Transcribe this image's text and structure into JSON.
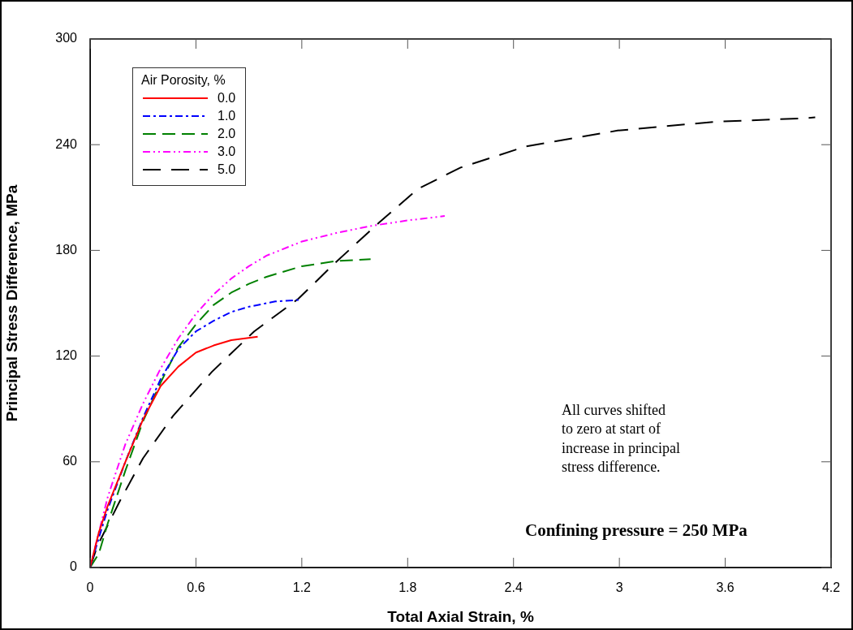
{
  "chart_data": {
    "type": "line",
    "xlabel": "Total Axial Strain, %",
    "ylabel": "Principal Stress Difference, MPa",
    "legend_title": "Air Porosity, %",
    "legend": "top left",
    "grid": false,
    "marker": "none",
    "xlim": [
      0,
      4.2
    ],
    "xticks": [
      0,
      0.6,
      1.2,
      1.8,
      2.4,
      3,
      3.6,
      4.2
    ],
    "ylim": [
      0,
      300
    ],
    "yticks": [
      0,
      60,
      120,
      180,
      240,
      300
    ],
    "annotations": [
      "All curves shifted\nto zero at start of\nincrease in principal\nstress difference.",
      "Confining pressure = 250 MPa"
    ],
    "series": [
      {
        "name": "0.0",
        "color": "#ff0000",
        "line_style": "solid",
        "x": [
          0,
          0.05,
          0.1,
          0.2,
          0.3,
          0.4,
          0.5,
          0.6,
          0.7,
          0.8,
          0.95
        ],
        "values": [
          0,
          20,
          35,
          60,
          84,
          103,
          114,
          122,
          126,
          129,
          131
        ]
      },
      {
        "name": "1.0",
        "color": "#0000ff",
        "line_style": "dashed",
        "x": [
          0,
          0.05,
          0.1,
          0.2,
          0.3,
          0.4,
          0.5,
          0.6,
          0.7,
          0.8,
          0.9,
          1.05,
          1.2
        ],
        "values": [
          0,
          17,
          33,
          60,
          85,
          107,
          124,
          134,
          140,
          145,
          148,
          151,
          152
        ]
      },
      {
        "name": "2.0",
        "color": "#008000",
        "line_style": "dashed",
        "x": [
          0,
          0.05,
          0.1,
          0.2,
          0.3,
          0.4,
          0.5,
          0.6,
          0.7,
          0.8,
          0.9,
          1.0,
          1.2,
          1.4,
          1.59
        ],
        "values": [
          0,
          8,
          25,
          55,
          83,
          105,
          125,
          138,
          149,
          156,
          161,
          165,
          171,
          174,
          175
        ]
      },
      {
        "name": "3.0",
        "color": "#ff00ff",
        "line_style": "dashed",
        "x": [
          0,
          0.05,
          0.1,
          0.2,
          0.3,
          0.4,
          0.5,
          0.6,
          0.7,
          0.8,
          0.9,
          1.0,
          1.2,
          1.4,
          1.6,
          1.8,
          2.01
        ],
        "values": [
          0,
          20,
          40,
          70,
          93,
          113,
          130,
          144,
          155,
          164,
          171,
          177,
          185,
          190,
          194,
          197,
          199.5
        ]
      },
      {
        "name": "5.0",
        "color": "#000000",
        "line_style": "dashed",
        "x": [
          0,
          0.04,
          0.165,
          0.3,
          0.47,
          0.69,
          0.93,
          1.18,
          1.39,
          1.64,
          1.86,
          2.1,
          2.47,
          2.99,
          3.54,
          4.04,
          4.11
        ],
        "values": [
          0,
          12,
          37,
          62,
          86,
          111,
          134,
          152.5,
          173,
          196,
          215,
          227,
          239,
          248,
          253,
          255,
          255.5
        ]
      }
    ]
  }
}
